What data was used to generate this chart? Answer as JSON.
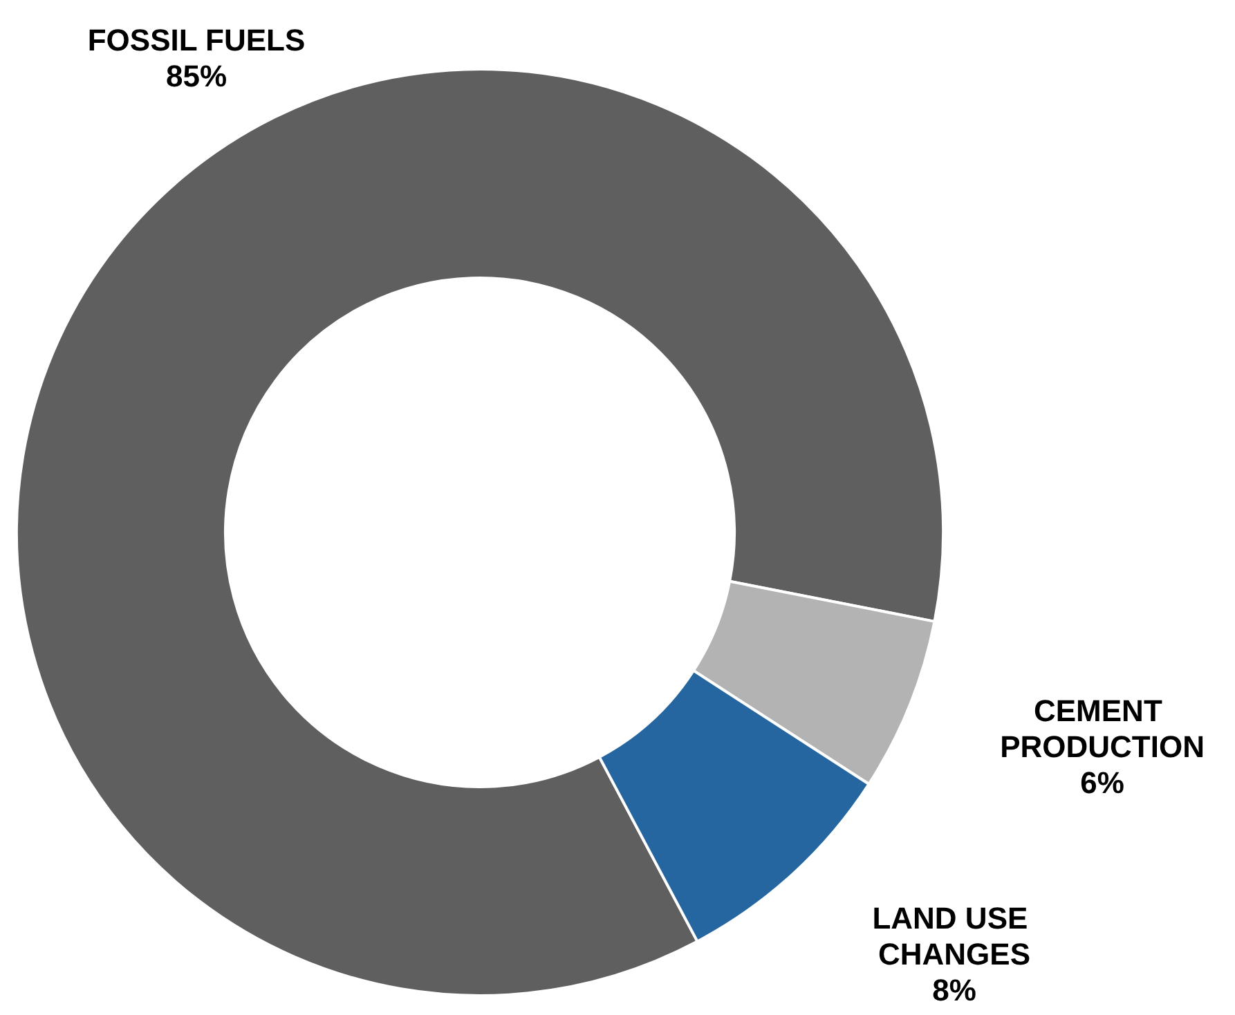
{
  "chart_data": {
    "type": "donut",
    "categories": [
      "FOSSIL FUELS",
      "CEMENT PRODUCTION",
      "LAND USE CHANGES"
    ],
    "values": [
      85,
      6,
      8
    ],
    "colors": [
      "#5f5f5f",
      "#b3b3b3",
      "#2565a0"
    ],
    "value_labels": [
      "85%",
      "6%",
      "8%"
    ],
    "legend": false
  }
}
